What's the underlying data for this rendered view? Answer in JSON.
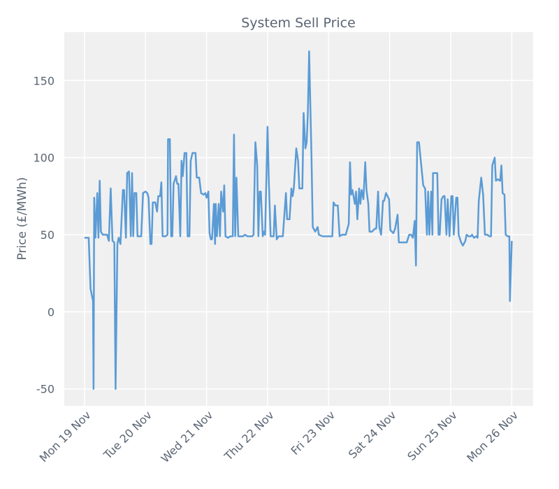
{
  "chart_data": {
    "type": "line",
    "title": "System Sell Price",
    "ylabel": "Price (£/MWh)",
    "color": "#5b9bd5",
    "x": [
      0,
      0.07,
      0.1,
      0.14,
      0.15,
      0.16,
      0.18,
      0.21,
      0.23,
      0.25,
      0.27,
      0.3,
      0.37,
      0.4,
      0.43,
      0.46,
      0.49,
      0.51,
      0.54,
      0.56,
      0.59,
      0.63,
      0.65,
      0.68,
      0.7,
      0.73,
      0.76,
      0.78,
      0.8,
      0.82,
      0.85,
      0.87,
      0.93,
      0.96,
      1.0,
      1.03,
      1.05,
      1.08,
      1.1,
      1.12,
      1.16,
      1.19,
      1.21,
      1.24,
      1.26,
      1.28,
      1.33,
      1.36,
      1.37,
      1.4,
      1.42,
      1.44,
      1.46,
      1.5,
      1.52,
      1.54,
      1.57,
      1.59,
      1.61,
      1.64,
      1.67,
      1.69,
      1.72,
      1.74,
      1.77,
      1.82,
      1.84,
      1.88,
      1.91,
      1.95,
      1.98,
      2.0,
      2.03,
      2.05,
      2.07,
      2.09,
      2.12,
      2.14,
      2.15,
      2.17,
      2.2,
      2.22,
      2.24,
      2.27,
      2.29,
      2.31,
      2.35,
      2.39,
      2.43,
      2.45,
      2.47,
      2.49,
      2.52,
      2.54,
      2.6,
      2.63,
      2.67,
      2.75,
      2.77,
      2.8,
      2.83,
      2.85,
      2.87,
      2.89,
      2.92,
      2.94,
      2.96,
      3.0,
      3.02,
      3.05,
      3.1,
      3.12,
      3.15,
      3.18,
      3.25,
      3.3,
      3.32,
      3.36,
      3.39,
      3.41,
      3.43,
      3.47,
      3.5,
      3.52,
      3.57,
      3.59,
      3.62,
      3.64,
      3.66,
      3.68,
      3.72,
      3.74,
      3.78,
      3.82,
      3.84,
      3.9,
      3.99,
      4.06,
      4.08,
      4.11,
      4.15,
      4.18,
      4.22,
      4.28,
      4.33,
      4.35,
      4.37,
      4.39,
      4.43,
      4.45,
      4.47,
      4.5,
      4.52,
      4.54,
      4.57,
      4.6,
      4.62,
      4.65,
      4.67,
      4.71,
      4.76,
      4.78,
      4.81,
      4.83,
      4.86,
      4.89,
      4.91,
      4.94,
      4.99,
      5.01,
      5.06,
      5.09,
      5.13,
      5.15,
      5.23,
      5.28,
      5.32,
      5.35,
      5.38,
      5.41,
      5.43,
      5.45,
      5.48,
      5.52,
      5.55,
      5.58,
      5.61,
      5.63,
      5.65,
      5.68,
      5.7,
      5.71,
      5.78,
      5.8,
      5.82,
      5.85,
      5.88,
      5.9,
      5.93,
      5.95,
      5.98,
      6.01,
      6.03,
      6.05,
      6.09,
      6.11,
      6.13,
      6.17,
      6.2,
      6.24,
      6.26,
      6.29,
      6.33,
      6.35,
      6.38,
      6.42,
      6.44,
      6.46,
      6.5,
      6.53,
      6.56,
      6.6,
      6.63,
      6.66,
      6.68,
      6.72,
      6.74,
      6.77,
      6.81,
      6.83,
      6.85,
      6.88,
      6.9,
      6.93,
      6.96,
      6.97,
      7.0
    ],
    "values": [
      48,
      48,
      15,
      7,
      -50,
      74,
      48,
      77,
      48,
      85,
      52,
      50,
      50,
      46,
      80,
      46,
      45,
      -50,
      44,
      48,
      44,
      79,
      79,
      48,
      90,
      91,
      49,
      90,
      49,
      77,
      77,
      49,
      49,
      77,
      78,
      77,
      74,
      44,
      44,
      71,
      71,
      65,
      75,
      75,
      84,
      49,
      49,
      50,
      112,
      112,
      49,
      49,
      83,
      88,
      83,
      83,
      49,
      98,
      88,
      103,
      103,
      49,
      49,
      98,
      103,
      103,
      87,
      87,
      77,
      76,
      77,
      74,
      78,
      51,
      47,
      47,
      70,
      44,
      70,
      49,
      70,
      49,
      78,
      65,
      82,
      49,
      48,
      49,
      49,
      115,
      49,
      87,
      49,
      49,
      49,
      50,
      49,
      49,
      50,
      110,
      95,
      49,
      78,
      78,
      49,
      52,
      50,
      120,
      85,
      49,
      49,
      69,
      47,
      49,
      49,
      77,
      60,
      60,
      80,
      75,
      80,
      106,
      98,
      80,
      80,
      129,
      106,
      110,
      129,
      169,
      100,
      55,
      52,
      55,
      50,
      49,
      49,
      49,
      71,
      69,
      69,
      49,
      50,
      50,
      57,
      97,
      76,
      79,
      70,
      78,
      60,
      80,
      70,
      79,
      73,
      97,
      79,
      70,
      52,
      52,
      54,
      54,
      78,
      55,
      50,
      72,
      72,
      77,
      73,
      53,
      51,
      54,
      63,
      45,
      45,
      45,
      50,
      50,
      48,
      59,
      30,
      110,
      110,
      94,
      82,
      80,
      50,
      78,
      50,
      78,
      50,
      90,
      90,
      50,
      50,
      73,
      75,
      75,
      50,
      73,
      49,
      75,
      75,
      50,
      74,
      74,
      50,
      45,
      43,
      46,
      50,
      49,
      49,
      50,
      48,
      49,
      48,
      72,
      87,
      76,
      50,
      50,
      49,
      49,
      95,
      100,
      85,
      86,
      85,
      95,
      77,
      76,
      50,
      49,
      49,
      7,
      46
    ],
    "xlim": [
      -0.33,
      7.35
    ],
    "xticks": [
      {
        "value": 0,
        "label": "Mon 19 Nov"
      },
      {
        "value": 1,
        "label": "Tue 20 Nov"
      },
      {
        "value": 2,
        "label": "Wed 21 Nov"
      },
      {
        "value": 3,
        "label": "Thu 22 Nov"
      },
      {
        "value": 4,
        "label": "Fri 23 Nov"
      },
      {
        "value": 5,
        "label": "Sat 24 Nov"
      },
      {
        "value": 6,
        "label": "Sun 25 Nov"
      },
      {
        "value": 7,
        "label": "Mon 26 Nov"
      }
    ],
    "ylim": [
      -61,
      181.4
    ],
    "yticks": [
      -50,
      0,
      50,
      100,
      150
    ],
    "grid": true
  }
}
